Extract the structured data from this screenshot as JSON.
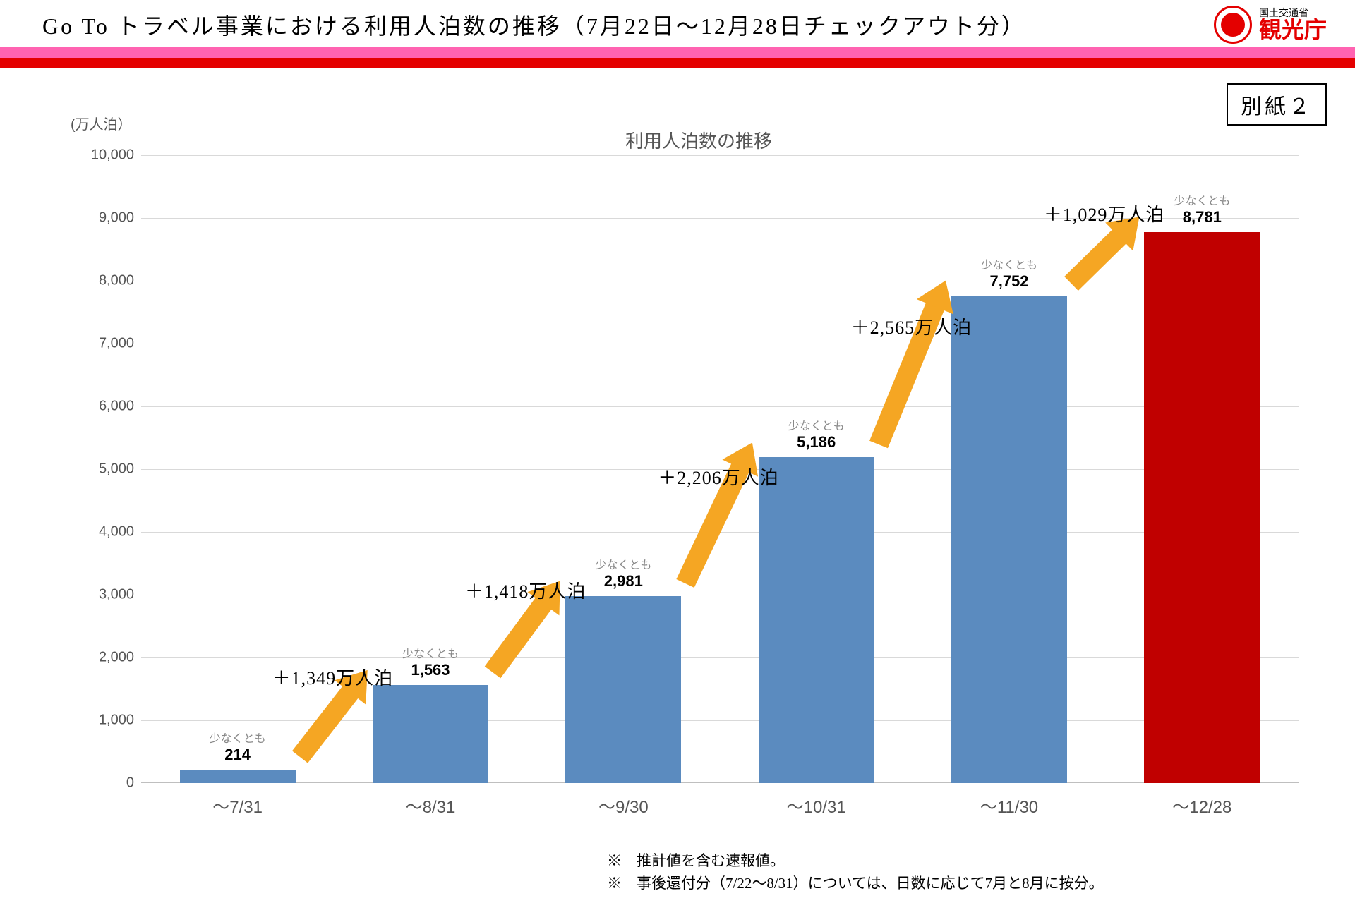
{
  "header": {
    "title": "Go To トラベル事業における利用人泊数の推移（7月22日～12月28日チェックアウト分）",
    "logo_sub": "国土交通省",
    "logo_main": "観光庁",
    "logo_color": "#e40000"
  },
  "stripes": {
    "pink": "#ff63b1",
    "red": "#e40000"
  },
  "attachment": "別紙２",
  "chart": {
    "type": "bar",
    "y_unit_label": "(万人泊）",
    "title": "利用人泊数の推移",
    "ylim": [
      0,
      10000
    ],
    "ytick_step": 1000,
    "yticks": [
      "0",
      "1,000",
      "2,000",
      "3,000",
      "4,000",
      "5,000",
      "6,000",
      "7,000",
      "8,000",
      "9,000",
      "10,000"
    ],
    "grid_color": "#d9d9d9",
    "axis_color": "#bfbfbf",
    "background_color": "#ffffff",
    "bar_width_ratio": 0.6,
    "label_prefix": "少なくとも",
    "categories": [
      "～7/31",
      "～8/31",
      "～9/30",
      "～10/31",
      "～11/30",
      "～12/28"
    ],
    "values": [
      214,
      1563,
      2981,
      5186,
      7752,
      8781
    ],
    "value_labels": [
      "214",
      "1,563",
      "2,981",
      "5,186",
      "7,752",
      "8,781"
    ],
    "bar_colors": [
      "#5b8bbf",
      "#5b8bbf",
      "#5b8bbf",
      "#5b8bbf",
      "#5b8bbf",
      "#c00000"
    ],
    "annotations": [
      "＋1,349万人泊",
      "＋1,418万人泊",
      "＋2,206万人泊",
      "＋2,565万人泊",
      "＋1,029万人泊"
    ],
    "arrow_color": "#f5a623",
    "label_fontsize": 20,
    "category_fontsize": 24,
    "title_fontsize": 26
  },
  "footnotes": {
    "l1": "※　推計値を含む速報値。",
    "l2": "※　事後還付分（7/22～8/31）については、日数に応じて7月と8月に按分。"
  }
}
